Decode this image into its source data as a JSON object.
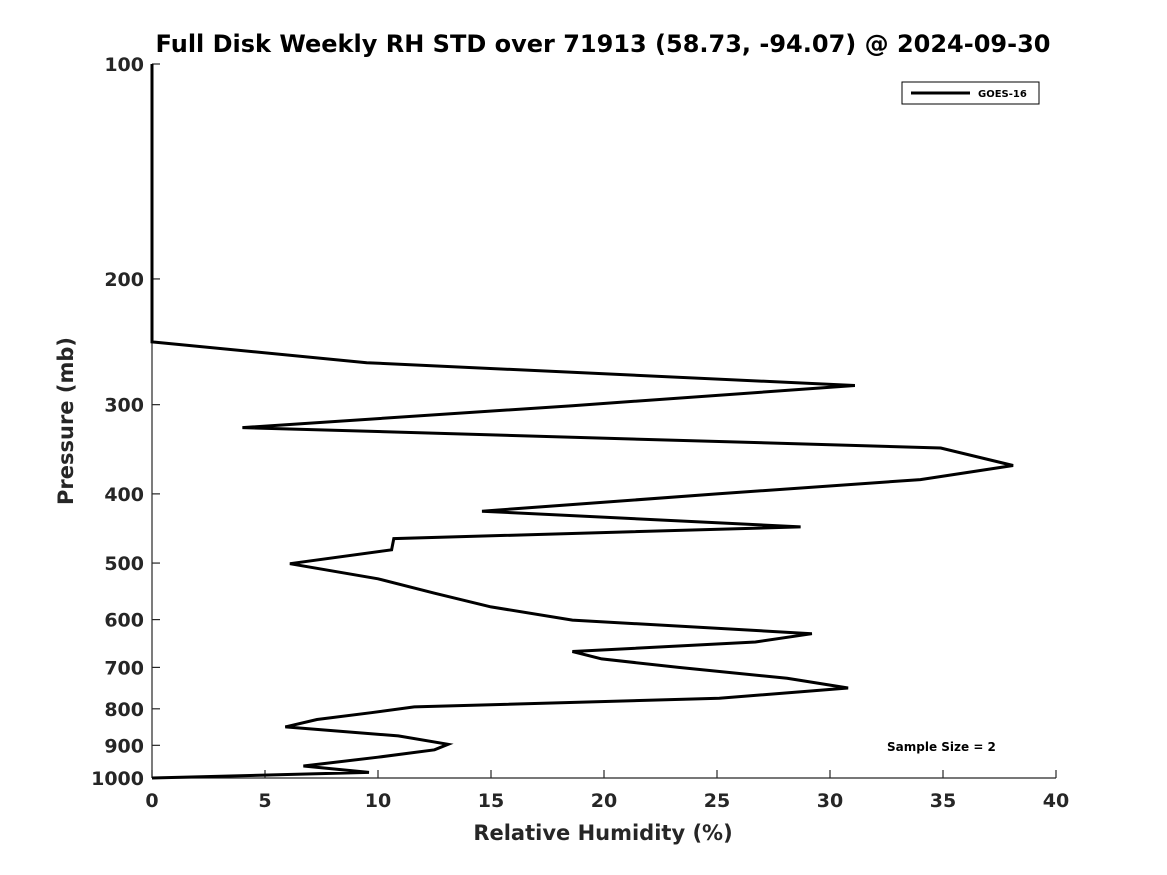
{
  "chart_data": {
    "type": "line",
    "title": "Full Disk Weekly RH STD over 71913 (58.73, -94.07) @ 2024-09-30",
    "xlabel": "Relative Humidity (%)",
    "ylabel": "Pressure (mb)",
    "xlim": [
      0,
      40
    ],
    "ylim": [
      100,
      1000
    ],
    "y_scale": "log",
    "y_reversed": true,
    "x_ticks": [
      0,
      5,
      10,
      15,
      20,
      25,
      30,
      35,
      40
    ],
    "x_tick_labels": [
      "0",
      "5",
      "10",
      "15",
      "20",
      "25",
      "30",
      "35",
      "40"
    ],
    "y_ticks": [
      100,
      200,
      300,
      400,
      500,
      600,
      700,
      800,
      900,
      1000
    ],
    "y_tick_labels": [
      "100",
      "200",
      "300",
      "400",
      "500",
      "600",
      "700",
      "800",
      "900",
      "1000"
    ],
    "grid": false,
    "legend_position": "top-right",
    "annotation": "Sample Size = 2",
    "series": [
      {
        "name": "GOES-16",
        "color": "#000000",
        "x": [
          0,
          0,
          0,
          0,
          0,
          0,
          0,
          9.5,
          31.1,
          18.6,
          4.0,
          34.9,
          38.1,
          34.0,
          25.0,
          14.6,
          28.7,
          10.7,
          10.6,
          6.1,
          10.0,
          12.5,
          15.0,
          18.6,
          29.2,
          26.7,
          18.6,
          19.9,
          23.3,
          28.1,
          30.8,
          25.1,
          11.6,
          9.7,
          7.3,
          5.9,
          10.9,
          13.1,
          12.5,
          10.0,
          6.7,
          9.6,
          0
        ],
        "y": [
          100,
          150,
          200,
          225,
          235,
          240,
          245,
          262,
          282,
          301,
          323,
          345,
          365,
          382,
          400,
          423,
          445,
          462,
          479,
          501,
          526,
          551,
          576,
          601,
          628,
          645,
          665,
          681,
          700,
          725,
          748,
          773,
          795,
          810,
          828,
          848,
          873,
          897,
          913,
          935,
          962,
          982,
          1000
        ]
      }
    ]
  }
}
